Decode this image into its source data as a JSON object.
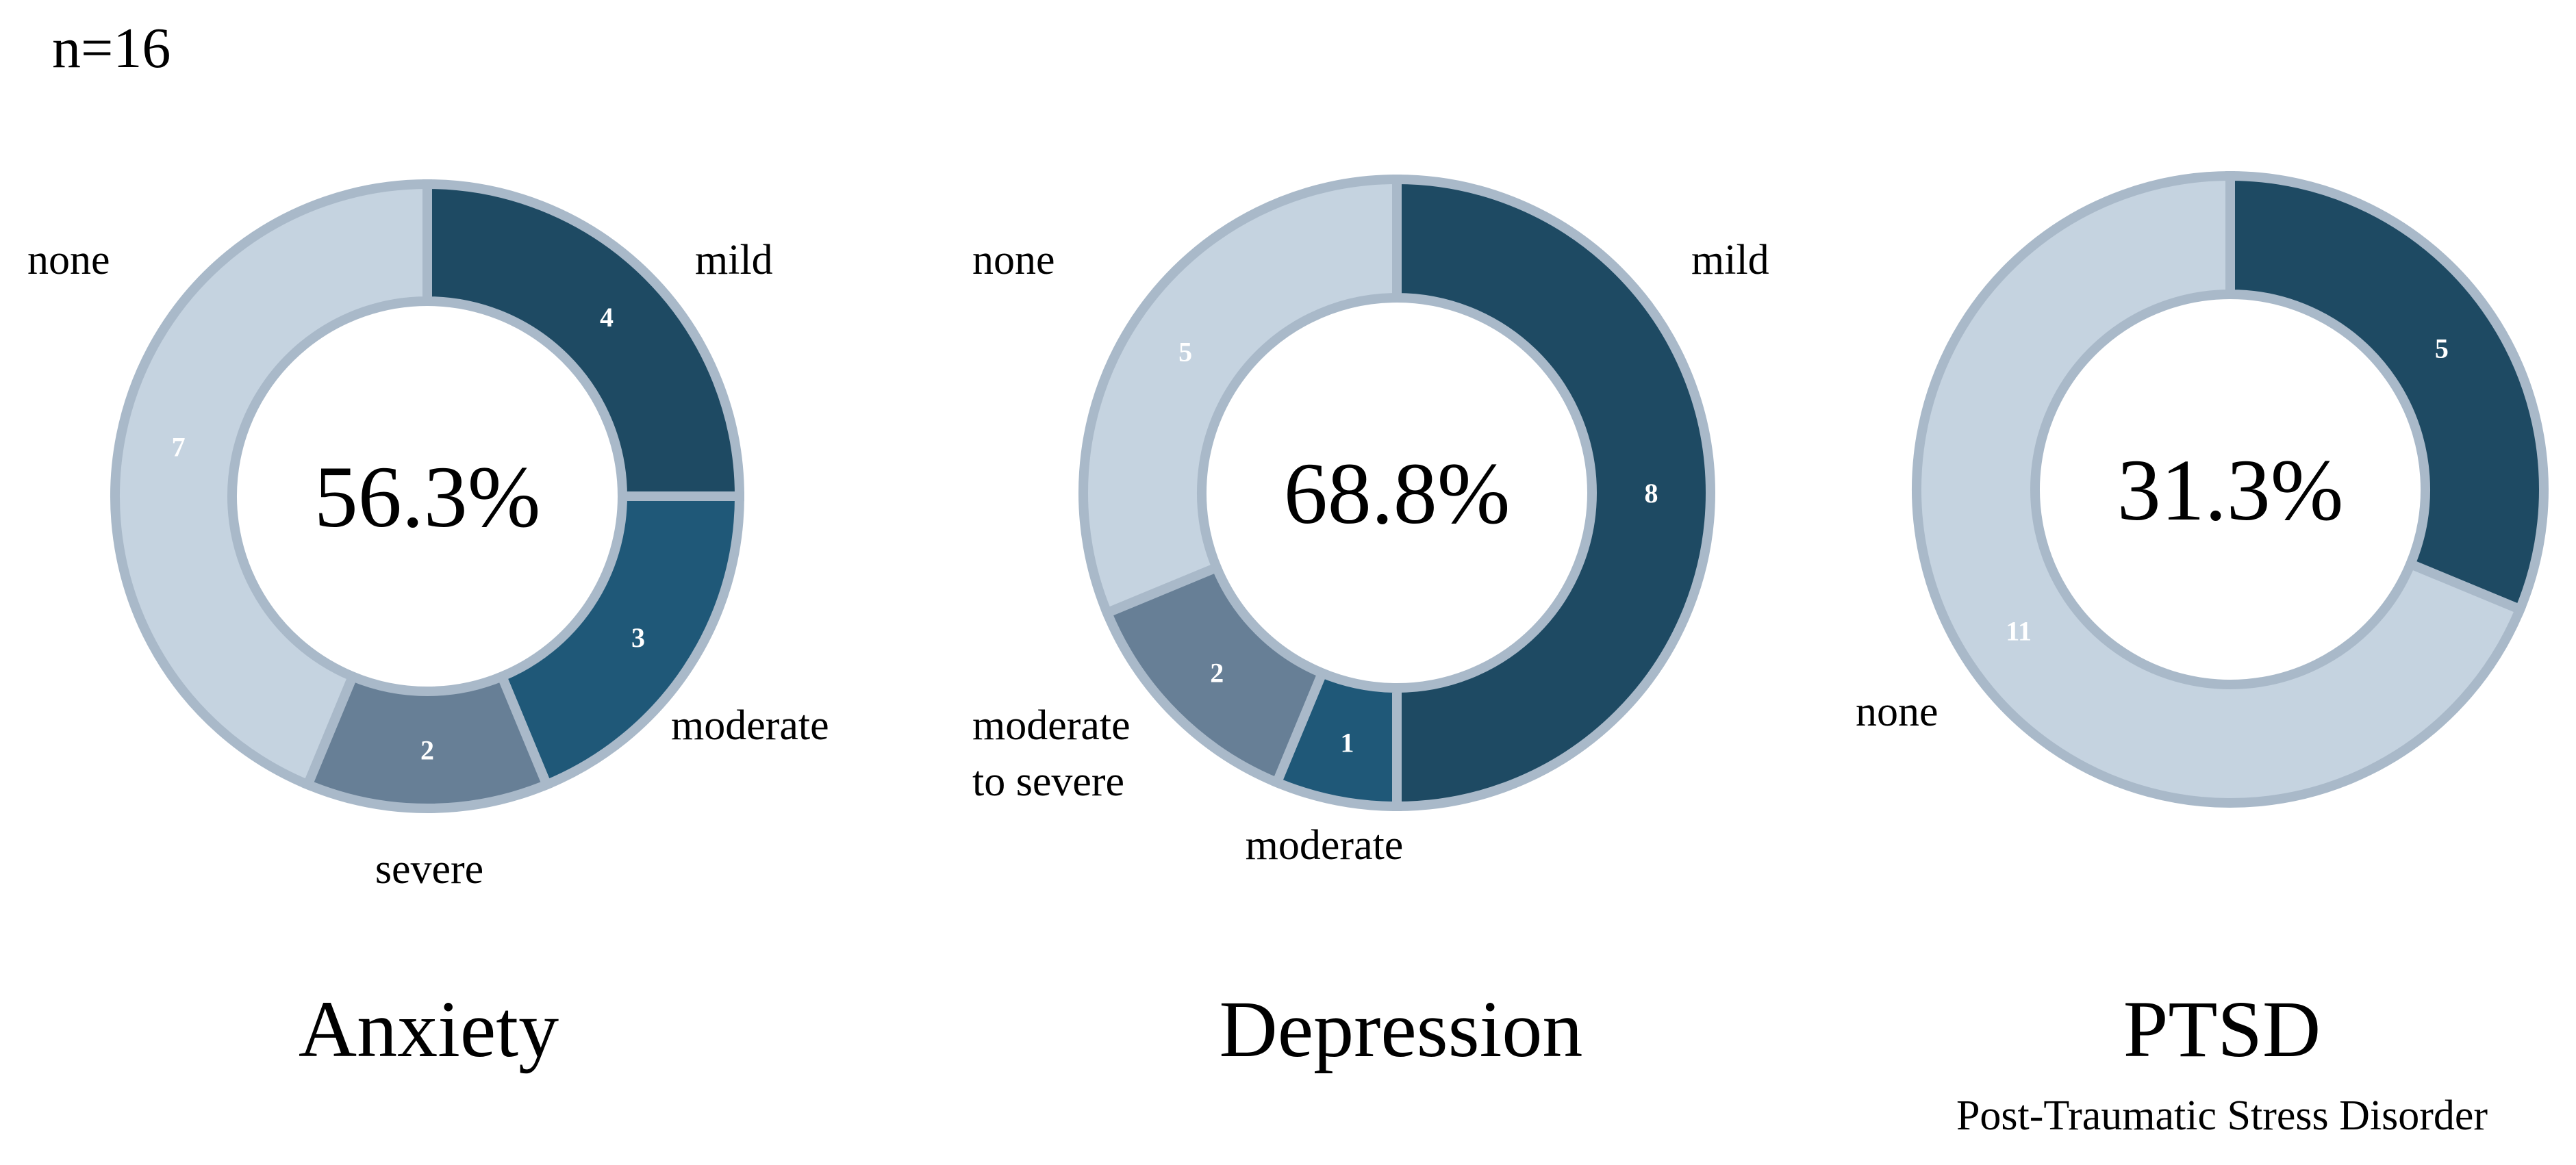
{
  "n_label": "n=16",
  "colors": {
    "mild": "#1e4a63",
    "moderate": "#1f5878",
    "severe": "#677f96",
    "none": "#c5d3e0",
    "stroke": "#a9b9c9"
  },
  "chart_data": [
    {
      "type": "pie",
      "title": "Anxiety",
      "subtitle": "",
      "center_text": "56.3%",
      "slices": [
        {
          "label": "mild",
          "value": 4,
          "color_key": "mild"
        },
        {
          "label": "moderate",
          "value": 3,
          "color_key": "moderate"
        },
        {
          "label": "severe",
          "value": 2,
          "color_key": "severe"
        },
        {
          "label": "none",
          "value": 7,
          "color_key": "none"
        }
      ]
    },
    {
      "type": "pie",
      "title": "Depression",
      "subtitle": "",
      "center_text": "68.8%",
      "slices": [
        {
          "label": "mild",
          "value": 8,
          "color_key": "mild"
        },
        {
          "label": "moderate",
          "value": 1,
          "color_key": "moderate"
        },
        {
          "label": "moderate\nto severe",
          "value": 2,
          "color_key": "severe"
        },
        {
          "label": "none",
          "value": 5,
          "color_key": "none"
        }
      ]
    },
    {
      "type": "pie",
      "title": "PTSD",
      "subtitle": "Post-Traumatic Stress Disorder",
      "center_text": "31.3%",
      "slices": [
        {
          "label": "",
          "value": 5,
          "color_key": "mild"
        },
        {
          "label": "none",
          "value": 11,
          "color_key": "none"
        }
      ]
    }
  ]
}
